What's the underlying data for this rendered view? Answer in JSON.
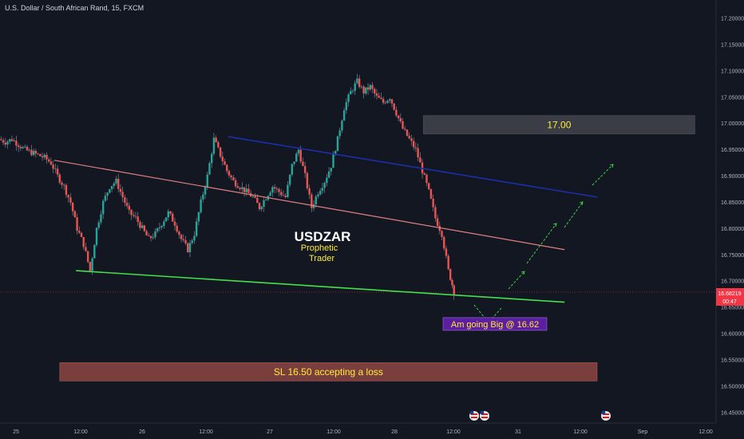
{
  "header": {
    "title": "U.S. Dollar / South African Rand, 15, FXCM"
  },
  "price_badge": {
    "price": "16.68219",
    "countdown": "00:47",
    "color": "#f23645"
  },
  "colors": {
    "background": "#131722",
    "up": "#26a69a",
    "down": "#ef5350",
    "wick": "#7e8493"
  },
  "chart_data": {
    "type": "candlestick",
    "title": "U.S. Dollar / South African Rand, 15, FXCM",
    "ylim": [
      16.43,
      17.235
    ],
    "y_ticks": [
      "17.20000",
      "17.15000",
      "17.10000",
      "17.05000",
      "17.00000",
      "16.95000",
      "16.90000",
      "16.85000",
      "16.80000",
      "16.75000",
      "16.70000",
      "16.65000",
      "16.60000",
      "16.55000",
      "16.50000",
      "16.45000"
    ],
    "x_ticks": [
      "25",
      "12:00",
      "26",
      "12:00",
      "27",
      "12:00",
      "28",
      "12:00",
      "31",
      "12:00",
      "Sep",
      "12:00"
    ],
    "price_path": [
      [
        0.0,
        16.97
      ],
      [
        0.6,
        16.965
      ],
      [
        1.2,
        16.97
      ],
      [
        1.8,
        16.96
      ],
      [
        2.4,
        16.95
      ],
      [
        3.0,
        16.945
      ],
      [
        3.6,
        16.94
      ],
      [
        4.2,
        16.935
      ],
      [
        4.8,
        16.925
      ],
      [
        5.4,
        16.9
      ],
      [
        6.0,
        16.88
      ],
      [
        6.6,
        16.85
      ],
      [
        7.2,
        16.8
      ],
      [
        7.8,
        16.77
      ],
      [
        8.4,
        16.72
      ],
      [
        9.0,
        16.8
      ],
      [
        9.6,
        16.85
      ],
      [
        10.2,
        16.88
      ],
      [
        10.8,
        16.89
      ],
      [
        11.4,
        16.86
      ],
      [
        12.0,
        16.83
      ],
      [
        12.6,
        16.82
      ],
      [
        13.2,
        16.8
      ],
      [
        13.8,
        16.78
      ],
      [
        14.4,
        16.79
      ],
      [
        15.0,
        16.81
      ],
      [
        15.6,
        16.83
      ],
      [
        16.2,
        16.81
      ],
      [
        16.8,
        16.78
      ],
      [
        17.4,
        16.76
      ],
      [
        18.0,
        16.79
      ],
      [
        18.6,
        16.85
      ],
      [
        19.2,
        16.9
      ],
      [
        19.8,
        16.97
      ],
      [
        20.4,
        16.94
      ],
      [
        21.0,
        16.91
      ],
      [
        21.6,
        16.89
      ],
      [
        22.2,
        16.88
      ],
      [
        22.8,
        16.87
      ],
      [
        23.4,
        16.86
      ],
      [
        24.0,
        16.84
      ],
      [
        24.6,
        16.86
      ],
      [
        25.2,
        16.88
      ],
      [
        25.8,
        16.87
      ],
      [
        26.4,
        16.86
      ],
      [
        27.0,
        16.92
      ],
      [
        27.6,
        16.95
      ],
      [
        28.2,
        16.9
      ],
      [
        28.8,
        16.84
      ],
      [
        29.4,
        16.87
      ],
      [
        30.0,
        16.89
      ],
      [
        30.6,
        16.92
      ],
      [
        31.2,
        16.97
      ],
      [
        31.8,
        17.03
      ],
      [
        32.4,
        17.06
      ],
      [
        33.0,
        17.08
      ],
      [
        33.6,
        17.06
      ],
      [
        34.2,
        17.07
      ],
      [
        34.8,
        17.05
      ],
      [
        35.4,
        17.04
      ],
      [
        36.0,
        17.05
      ],
      [
        36.6,
        17.02
      ],
      [
        37.2,
        16.99
      ],
      [
        37.8,
        16.97
      ],
      [
        38.4,
        16.95
      ],
      [
        39.0,
        16.91
      ],
      [
        39.6,
        16.87
      ],
      [
        40.2,
        16.82
      ],
      [
        40.8,
        16.79
      ],
      [
        41.4,
        16.72
      ],
      [
        41.9,
        16.68
      ]
    ],
    "annotations": [
      {
        "text": "USDZAR",
        "color": "#ffffff"
      },
      {
        "text": "Prophetic",
        "color": "#ffeb3b"
      },
      {
        "text": "Trader",
        "color": "#ffeb3b"
      },
      {
        "text": "17.00",
        "color": "#ffeb3b"
      },
      {
        "text": "Am going Big @ 16.62",
        "color": "#ffeb3b"
      },
      {
        "text": "SL 16.50 accepting a loss",
        "color": "#ffeb3b"
      }
    ],
    "trendlines": [
      {
        "name": "upper channel",
        "color": "#1c2fa8",
        "from": [
          21.0,
          16.975
        ],
        "to": [
          55.0,
          16.86
        ]
      },
      {
        "name": "mid channel",
        "color": "#e08080",
        "from": [
          5.0,
          16.93
        ],
        "to": [
          52.0,
          16.76
        ]
      },
      {
        "name": "support",
        "color": "#44e14a",
        "from": [
          7.0,
          16.72
        ],
        "to": [
          52.0,
          16.66
        ]
      }
    ],
    "zones": [
      {
        "label": "17.00",
        "from": [
          39.0,
          17.015
        ],
        "to": [
          64.0,
          16.98
        ]
      },
      {
        "label": "SL 16.50 accepting a loss",
        "from": [
          5.5,
          16.545
        ],
        "to": [
          55.0,
          16.51
        ]
      }
    ],
    "entry_box": {
      "label": "Am going Big @ 16.62",
      "price": 16.62
    }
  }
}
